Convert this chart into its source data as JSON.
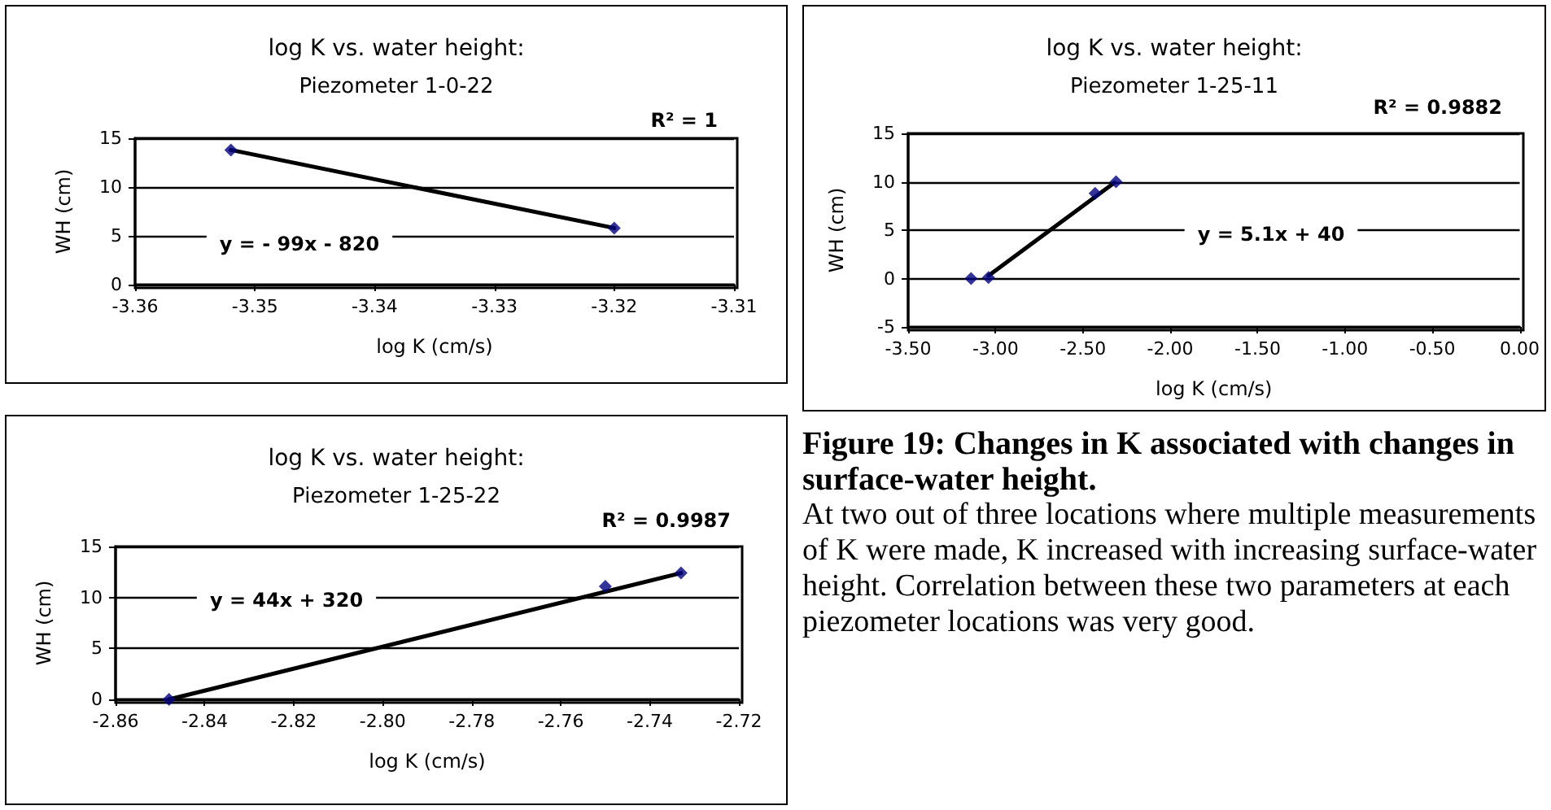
{
  "chart_data": [
    {
      "type": "scatter",
      "title": "log K vs. water height:",
      "subtitle": "Piezometer 1-0-22",
      "xlabel": "log K (cm/s)",
      "ylabel": "WH (cm)",
      "annotations": [
        "R² = 1",
        "y = - 99x - 820"
      ],
      "xlim": [
        -3.36,
        -3.31
      ],
      "xticks": [
        -3.36,
        -3.35,
        -3.34,
        -3.33,
        -3.32,
        -3.31
      ],
      "ylim": [
        0,
        15
      ],
      "yticks": [
        0,
        5,
        10,
        15
      ],
      "grid": "y",
      "marker": "diamond",
      "series": [
        {
          "type": "line",
          "color": "#000000",
          "line_style": "solid",
          "marker": "none",
          "x": [
            -3.352,
            -3.32
          ],
          "values": [
            13.8,
            5.8
          ]
        },
        {
          "color": "#000080",
          "x": [
            -3.352,
            -3.32
          ],
          "values": [
            13.8,
            5.8
          ]
        }
      ]
    },
    {
      "type": "scatter",
      "title": "log K vs. water height:",
      "subtitle": "Piezometer 1-25-11",
      "xlabel": "log K (cm/s)",
      "ylabel": "WH (cm)",
      "annotations": [
        "R² = 0.9882",
        "y = 5.1x + 40"
      ],
      "xlim": [
        -3.5,
        0
      ],
      "xticks": [
        {
          "value": -3.5,
          "label": "-3.50"
        },
        {
          "value": -3,
          "label": "-3.00"
        },
        {
          "value": -2.5,
          "label": "-2.50"
        },
        {
          "value": -2,
          "label": "-2.00"
        },
        {
          "value": -1.5,
          "label": "-1.50"
        },
        {
          "value": -1,
          "label": "-1.00"
        },
        {
          "value": -0.5,
          "label": "-0.50"
        },
        {
          "value": 0,
          "label": "0.00"
        }
      ],
      "ylim": [
        -5,
        15
      ],
      "yticks": [
        -5,
        0,
        5,
        10,
        15
      ],
      "grid": "y",
      "marker": "diamond",
      "series": [
        {
          "type": "line",
          "color": "#000000",
          "line_style": "solid",
          "marker": "none",
          "x": [
            -3.04,
            -2.32
          ],
          "values": [
            0.3,
            9.9
          ]
        },
        {
          "color": "#000080",
          "x": [
            -3.14,
            -3.04,
            -2.43,
            -2.31
          ],
          "values": [
            0,
            0.1,
            8.8,
            10
          ]
        }
      ]
    },
    {
      "type": "scatter",
      "title": "log K vs. water height:",
      "subtitle": "Piezometer 1-25-22",
      "xlabel": "log K (cm/s)",
      "ylabel": "WH (cm)",
      "annotations": [
        "R² = 0.9987",
        "y = 44x + 320"
      ],
      "xlim": [
        -2.86,
        -2.72
      ],
      "xticks": [
        -2.86,
        -2.84,
        -2.82,
        {
          "value": -2.8,
          "label": "-2.80"
        },
        -2.78,
        -2.76,
        -2.74,
        -2.72
      ],
      "ylim": [
        0,
        15
      ],
      "yticks": [
        0,
        5,
        10,
        15
      ],
      "grid": "y",
      "marker": "diamond",
      "series": [
        {
          "type": "line",
          "color": "#000000",
          "line_style": "solid",
          "marker": "none",
          "x": [
            -2.848,
            -2.733
          ],
          "values": [
            0,
            12.4
          ]
        },
        {
          "color": "#000080",
          "x": [
            -2.848,
            -2.75,
            -2.733
          ],
          "values": [
            0,
            11.1,
            12.4
          ]
        }
      ]
    },
    {
      "type": "other",
      "title": "Figure 19: Changes in K associated with changes in surface-water height.",
      "annotations": [
        "At two out of three locations where multiple measurements of K were made, K increased with increasing surface-water height. Correlation between these two parameters at each piezometer locations was very good."
      ]
    }
  ]
}
